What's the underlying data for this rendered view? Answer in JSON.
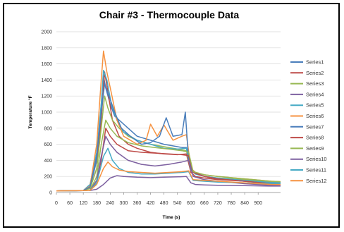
{
  "chart_data": {
    "type": "line",
    "title": "Chair #3 - Thermocouple Data",
    "xlabel": "Time (s)",
    "ylabel": "Temperature °F",
    "xlim": [
      0,
      1000
    ],
    "ylim": [
      0,
      2000
    ],
    "x_ticks": [
      0,
      60,
      120,
      180,
      240,
      300,
      360,
      420,
      480,
      540,
      600,
      660,
      720,
      780,
      840,
      900
    ],
    "y_ticks": [
      0,
      200,
      400,
      600,
      800,
      1000,
      1200,
      1400,
      1600,
      1800,
      2000
    ],
    "grid": true,
    "legend_position": "right",
    "series": [
      {
        "name": "Series1",
        "color": "#4a7ebb",
        "points": [
          [
            0,
            20
          ],
          [
            120,
            25
          ],
          [
            150,
            60
          ],
          [
            180,
            400
          ],
          [
            200,
            1100
          ],
          [
            210,
            1450
          ],
          [
            220,
            1300
          ],
          [
            240,
            1100
          ],
          [
            260,
            950
          ],
          [
            300,
            850
          ],
          [
            360,
            700
          ],
          [
            420,
            650
          ],
          [
            480,
            600
          ],
          [
            540,
            570
          ],
          [
            560,
            560
          ],
          [
            580,
            560
          ],
          [
            600,
            300
          ],
          [
            620,
            250
          ],
          [
            660,
            200
          ],
          [
            720,
            180
          ],
          [
            840,
            150
          ],
          [
            960,
            130
          ],
          [
            1000,
            125
          ]
        ]
      },
      {
        "name": "Series2",
        "color": "#be4b48",
        "points": [
          [
            0,
            20
          ],
          [
            120,
            25
          ],
          [
            150,
            50
          ],
          [
            180,
            300
          ],
          [
            200,
            900
          ],
          [
            215,
            1500
          ],
          [
            230,
            1250
          ],
          [
            250,
            900
          ],
          [
            280,
            700
          ],
          [
            320,
            600
          ],
          [
            360,
            550
          ],
          [
            420,
            500
          ],
          [
            480,
            480
          ],
          [
            540,
            470
          ],
          [
            580,
            480
          ],
          [
            600,
            250
          ],
          [
            620,
            200
          ],
          [
            660,
            180
          ],
          [
            720,
            160
          ],
          [
            840,
            140
          ],
          [
            960,
            120
          ],
          [
            1000,
            115
          ]
        ]
      },
      {
        "name": "Series3",
        "color": "#98b954",
        "points": [
          [
            0,
            20
          ],
          [
            120,
            25
          ],
          [
            150,
            50
          ],
          [
            180,
            300
          ],
          [
            200,
            800
          ],
          [
            215,
            1200
          ],
          [
            230,
            1050
          ],
          [
            250,
            900
          ],
          [
            280,
            800
          ],
          [
            320,
            700
          ],
          [
            360,
            650
          ],
          [
            420,
            600
          ],
          [
            480,
            570
          ],
          [
            540,
            540
          ],
          [
            580,
            520
          ],
          [
            600,
            280
          ],
          [
            620,
            230
          ],
          [
            660,
            200
          ],
          [
            720,
            180
          ],
          [
            840,
            160
          ],
          [
            960,
            130
          ],
          [
            1000,
            120
          ]
        ]
      },
      {
        "name": "Series4",
        "color": "#7d60a0",
        "points": [
          [
            0,
            20
          ],
          [
            150,
            25
          ],
          [
            180,
            40
          ],
          [
            210,
            100
          ],
          [
            240,
            180
          ],
          [
            270,
            210
          ],
          [
            300,
            200
          ],
          [
            360,
            190
          ],
          [
            420,
            185
          ],
          [
            480,
            190
          ],
          [
            540,
            195
          ],
          [
            580,
            200
          ],
          [
            600,
            120
          ],
          [
            620,
            100
          ],
          [
            660,
            95
          ],
          [
            720,
            90
          ],
          [
            840,
            85
          ],
          [
            960,
            80
          ],
          [
            1000,
            80
          ]
        ]
      },
      {
        "name": "Series5",
        "color": "#46aac5",
        "points": [
          [
            0,
            20
          ],
          [
            120,
            25
          ],
          [
            150,
            100
          ],
          [
            180,
            500
          ],
          [
            200,
            1100
          ],
          [
            210,
            1520
          ],
          [
            225,
            1400
          ],
          [
            245,
            1100
          ],
          [
            270,
            900
          ],
          [
            300,
            750
          ],
          [
            360,
            650
          ],
          [
            420,
            600
          ],
          [
            480,
            550
          ],
          [
            540,
            540
          ],
          [
            580,
            550
          ],
          [
            600,
            280
          ],
          [
            620,
            230
          ],
          [
            660,
            200
          ],
          [
            720,
            180
          ],
          [
            840,
            150
          ],
          [
            960,
            125
          ],
          [
            1000,
            120
          ]
        ]
      },
      {
        "name": "Series6",
        "color": "#f69240",
        "points": [
          [
            0,
            20
          ],
          [
            120,
            25
          ],
          [
            150,
            80
          ],
          [
            180,
            600
          ],
          [
            200,
            1400
          ],
          [
            210,
            1760
          ],
          [
            225,
            1500
          ],
          [
            245,
            1240
          ],
          [
            270,
            900
          ],
          [
            300,
            700
          ],
          [
            360,
            600
          ],
          [
            400,
            650
          ],
          [
            420,
            850
          ],
          [
            450,
            700
          ],
          [
            480,
            840
          ],
          [
            520,
            650
          ],
          [
            560,
            700
          ],
          [
            580,
            720
          ],
          [
            600,
            300
          ],
          [
            620,
            250
          ],
          [
            660,
            220
          ],
          [
            720,
            200
          ],
          [
            840,
            170
          ],
          [
            960,
            140
          ],
          [
            1000,
            135
          ]
        ]
      },
      {
        "name": "Series7",
        "color": "#4a7ebb",
        "points": [
          [
            0,
            20
          ],
          [
            120,
            25
          ],
          [
            150,
            70
          ],
          [
            180,
            450
          ],
          [
            200,
            1000
          ],
          [
            215,
            1350
          ],
          [
            235,
            1200
          ],
          [
            260,
            1000
          ],
          [
            290,
            800
          ],
          [
            330,
            700
          ],
          [
            380,
            600
          ],
          [
            420,
            620
          ],
          [
            460,
            700
          ],
          [
            490,
            930
          ],
          [
            520,
            700
          ],
          [
            560,
            720
          ],
          [
            575,
            1000
          ],
          [
            590,
            400
          ],
          [
            610,
            250
          ],
          [
            660,
            200
          ],
          [
            720,
            170
          ],
          [
            840,
            140
          ],
          [
            960,
            110
          ],
          [
            1000,
            105
          ]
        ]
      },
      {
        "name": "Series8",
        "color": "#be4b48",
        "points": [
          [
            0,
            20
          ],
          [
            150,
            25
          ],
          [
            180,
            150
          ],
          [
            200,
            400
          ],
          [
            220,
            800
          ],
          [
            240,
            700
          ],
          [
            270,
            600
          ],
          [
            320,
            520
          ],
          [
            380,
            500
          ],
          [
            440,
            490
          ],
          [
            500,
            480
          ],
          [
            560,
            470
          ],
          [
            590,
            460
          ],
          [
            610,
            250
          ],
          [
            660,
            200
          ],
          [
            720,
            170
          ],
          [
            840,
            140
          ],
          [
            960,
            110
          ],
          [
            1000,
            105
          ]
        ]
      },
      {
        "name": "Series9",
        "color": "#98b954",
        "points": [
          [
            0,
            20
          ],
          [
            150,
            25
          ],
          [
            180,
            200
          ],
          [
            200,
            600
          ],
          [
            220,
            900
          ],
          [
            240,
            800
          ],
          [
            270,
            700
          ],
          [
            320,
            620
          ],
          [
            380,
            580
          ],
          [
            440,
            560
          ],
          [
            500,
            540
          ],
          [
            560,
            520
          ],
          [
            590,
            500
          ],
          [
            610,
            260
          ],
          [
            660,
            220
          ],
          [
            720,
            200
          ],
          [
            840,
            170
          ],
          [
            960,
            140
          ],
          [
            1000,
            135
          ]
        ]
      },
      {
        "name": "Series10",
        "color": "#7d60a0",
        "points": [
          [
            0,
            20
          ],
          [
            150,
            25
          ],
          [
            180,
            150
          ],
          [
            200,
            450
          ],
          [
            220,
            700
          ],
          [
            240,
            600
          ],
          [
            270,
            500
          ],
          [
            320,
            400
          ],
          [
            380,
            350
          ],
          [
            440,
            330
          ],
          [
            500,
            350
          ],
          [
            560,
            380
          ],
          [
            590,
            400
          ],
          [
            610,
            200
          ],
          [
            660,
            160
          ],
          [
            720,
            140
          ],
          [
            840,
            110
          ],
          [
            960,
            90
          ],
          [
            1000,
            85
          ]
        ]
      },
      {
        "name": "Series11",
        "color": "#46aac5",
        "points": [
          [
            0,
            20
          ],
          [
            150,
            25
          ],
          [
            180,
            120
          ],
          [
            210,
            450
          ],
          [
            230,
            550
          ],
          [
            250,
            400
          ],
          [
            280,
            300
          ],
          [
            320,
            250
          ],
          [
            380,
            230
          ],
          [
            440,
            230
          ],
          [
            500,
            240
          ],
          [
            560,
            250
          ],
          [
            590,
            260
          ],
          [
            610,
            150
          ],
          [
            660,
            140
          ],
          [
            720,
            130
          ],
          [
            840,
            120
          ],
          [
            960,
            110
          ],
          [
            1000,
            110
          ]
        ]
      },
      {
        "name": "Series12",
        "color": "#f69240",
        "points": [
          [
            0,
            20
          ],
          [
            150,
            25
          ],
          [
            180,
            100
          ],
          [
            210,
            300
          ],
          [
            230,
            380
          ],
          [
            250,
            320
          ],
          [
            280,
            280
          ],
          [
            320,
            260
          ],
          [
            380,
            250
          ],
          [
            440,
            240
          ],
          [
            500,
            250
          ],
          [
            560,
            260
          ],
          [
            590,
            270
          ],
          [
            610,
            160
          ],
          [
            660,
            150
          ],
          [
            720,
            140
          ],
          [
            840,
            120
          ],
          [
            960,
            100
          ],
          [
            1000,
            100
          ]
        ]
      }
    ]
  }
}
